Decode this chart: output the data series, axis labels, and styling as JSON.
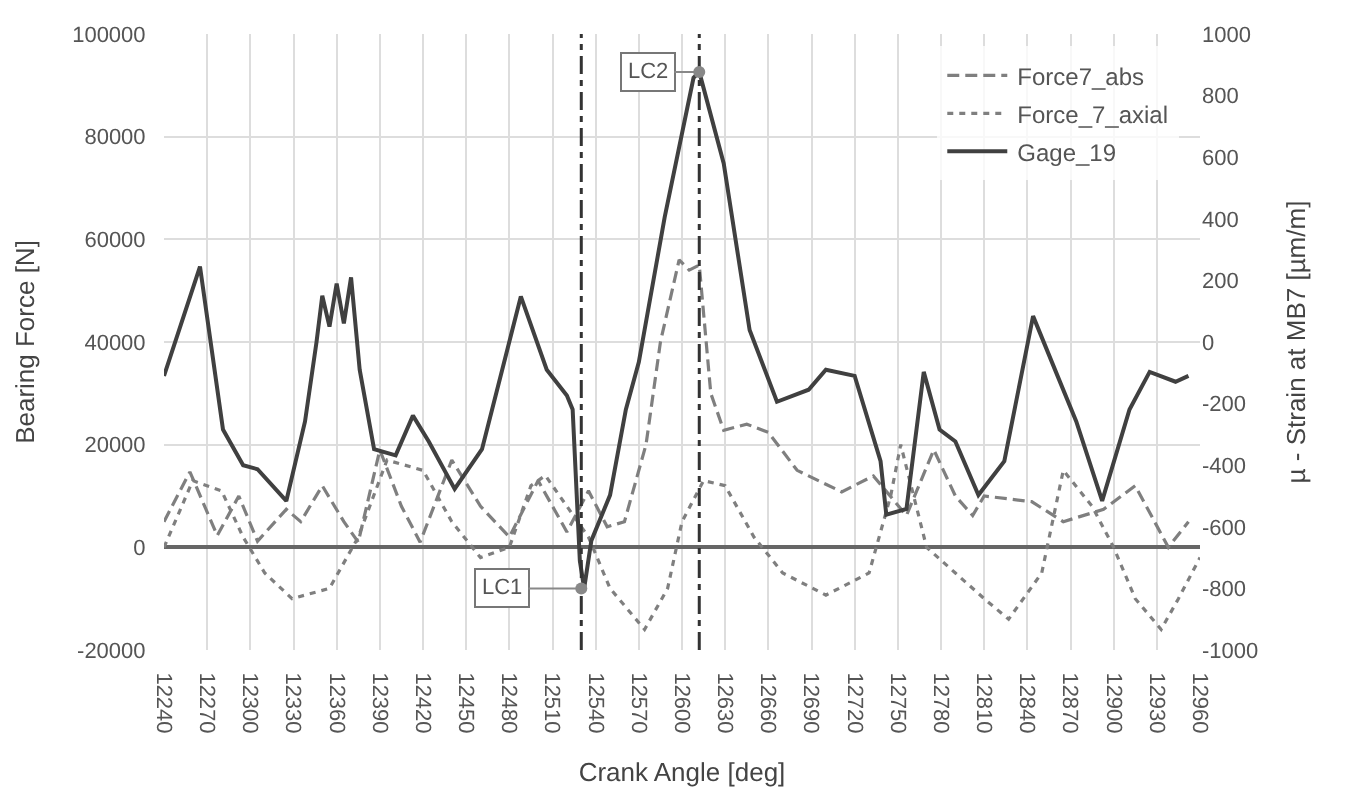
{
  "chart_data": {
    "type": "line",
    "xlabel": "Crank Angle [deg]",
    "ylabel": "Bearing Force [N]",
    "y2label": "µ - Strain at MB7 [µm/m]",
    "xlim": [
      12240,
      12960
    ],
    "xticks": [
      12240,
      12270,
      12300,
      12330,
      12360,
      12390,
      12420,
      12450,
      12480,
      12510,
      12540,
      12570,
      12600,
      12630,
      12660,
      12690,
      12720,
      12750,
      12780,
      12810,
      12840,
      12870,
      12900,
      12930,
      12960
    ],
    "ylim": [
      -20000,
      100000
    ],
    "yticks": [
      -20000,
      0,
      20000,
      40000,
      60000,
      80000,
      100000
    ],
    "y2lim": [
      -1000,
      1000
    ],
    "y2ticks": [
      -1000,
      -800,
      -600,
      -400,
      -200,
      0,
      200,
      400,
      600,
      800,
      1000
    ],
    "grid": true,
    "legend": "top right",
    "series": [
      {
        "name": "Force7_abs",
        "color": "#7f7f7f",
        "line_style": "dashed",
        "x": [
          12240,
          12258,
          12277,
          12292,
          12305,
          12325,
          12335,
          12350,
          12365,
          12375,
          12390,
          12405,
          12418,
          12440,
          12460,
          12480,
          12500,
          12520,
          12535,
          12548,
          12560,
          12575,
          12585,
          12598,
          12605,
          12612,
          12620,
          12629,
          12645,
          12660,
          12680,
          12711,
          12733,
          12756,
          12775,
          12790,
          12802,
          12810,
          12843,
          12865,
          12893,
          12915,
          12938,
          12952
        ],
        "values": [
          5000,
          14700,
          2300,
          10000,
          1200,
          7400,
          5000,
          12000,
          5000,
          1000,
          19000,
          8000,
          1000,
          17000,
          8000,
          2000,
          13000,
          3000,
          11000,
          4000,
          5000,
          20000,
          40000,
          56000,
          54000,
          55000,
          30000,
          22800,
          24000,
          22400,
          15000,
          10800,
          13900,
          6200,
          19000,
          10000,
          6200,
          10000,
          8900,
          5000,
          7400,
          12000,
          0,
          5000
        ]
      },
      {
        "name": "Force_7_axial",
        "color": "#7f7f7f",
        "line_style": "dotted",
        "x": [
          12240,
          12260,
          12280,
          12295,
          12310,
          12329,
          12355,
          12375,
          12395,
          12420,
          12440,
          12460,
          12480,
          12495,
          12505,
          12520,
          12535,
          12550,
          12574,
          12590,
          12600,
          12615,
          12630,
          12650,
          12670,
          12700,
          12730,
          12745,
          12752,
          12770,
          12790,
          12810,
          12827,
          12850,
          12865,
          12885,
          12900,
          12915,
          12933,
          12945,
          12960
        ],
        "values": [
          0,
          13000,
          11000,
          2000,
          -5000,
          -10000,
          -8000,
          2000,
          17000,
          15000,
          5000,
          -2000,
          0,
          12000,
          14000,
          8000,
          2000,
          -8000,
          -16000,
          -8000,
          5000,
          13000,
          12000,
          2000,
          -5000,
          -9300,
          -5000,
          10000,
          20000,
          0,
          -5000,
          -10000,
          -14000,
          -5000,
          15000,
          8000,
          0,
          -10000,
          -16000,
          -10000,
          -2000
        ]
      },
      {
        "name": "Gage_19",
        "color": "#404040",
        "line_style": "solid",
        "axis": "y2",
        "x": [
          12240,
          12265,
          12281,
          12295,
          12305,
          12325,
          12338,
          12346,
          12350,
          12355,
          12360,
          12365,
          12370,
          12376,
          12386,
          12401,
          12413,
          12424,
          12442,
          12461,
          12488,
          12506,
          12520,
          12524,
          12529,
          12532,
          12537,
          12550,
          12561,
          12570,
          12588,
          12608,
          12612,
          12629,
          12647,
          12666,
          12688,
          12700,
          12720,
          12738,
          12742,
          12756,
          12768,
          12779,
          12790,
          12806,
          12824,
          12844,
          12861,
          12874,
          12892,
          12911,
          12925,
          12943,
          12952
        ],
        "values": [
          -110,
          245,
          -284,
          -400,
          -413,
          -516,
          -258,
          0,
          150,
          50,
          190,
          60,
          210,
          -90,
          -348,
          -368,
          -239,
          -323,
          -477,
          -348,
          148,
          -90,
          -174,
          -219,
          -710,
          -800,
          -645,
          -497,
          -219,
          -65,
          406,
          858,
          877,
          580,
          39,
          -194,
          -155,
          -90,
          -110,
          -387,
          -561,
          -542,
          -97,
          -284,
          -323,
          -497,
          -387,
          84,
          -110,
          -258,
          -516,
          -219,
          -97,
          -129,
          -110
        ]
      }
    ],
    "ref_lines": [
      {
        "axis": "x",
        "value": 12530,
        "line_style": "dashdot"
      },
      {
        "axis": "x",
        "value": 12612,
        "line_style": "dashdot"
      }
    ],
    "annotations": [
      {
        "text": "LC1",
        "x": 12530,
        "y": -8000
      },
      {
        "text": "LC2",
        "x": 12612,
        "y": 92600
      }
    ]
  }
}
